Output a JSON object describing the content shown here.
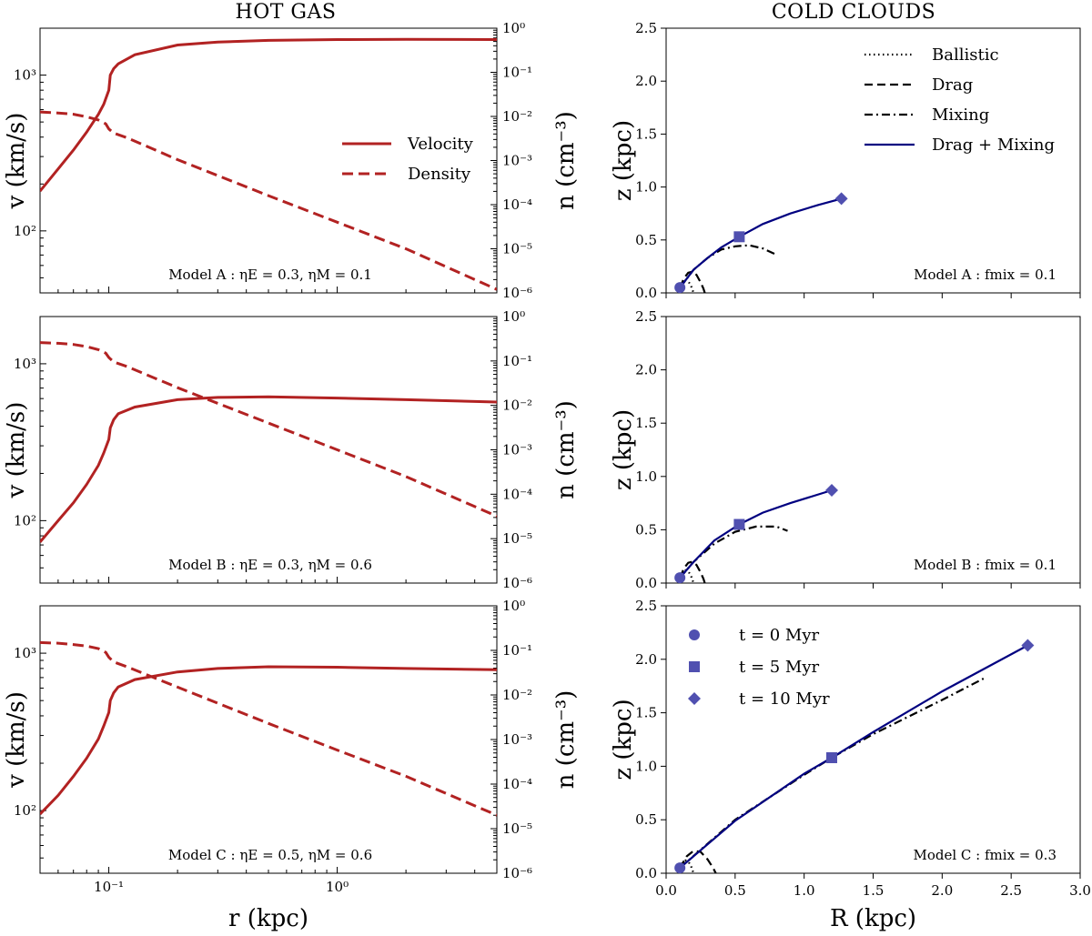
{
  "titles": {
    "left": "HOT GAS",
    "right": "COLD CLOUDS"
  },
  "colors": {
    "hot": "#b22222",
    "cold": "#000080",
    "marker": "#5050b0",
    "black": "#000000"
  },
  "chart_data": [
    {
      "type": "line",
      "panel": "hot-A",
      "xscale": "log",
      "xlim": [
        0.05,
        5.0
      ],
      "y_left": {
        "label": "v (km/s)",
        "scale": "log",
        "lim": [
          40,
          2000
        ],
        "ticks": [
          "10²",
          "10³"
        ]
      },
      "y_right": {
        "label": "n (cm⁻³)",
        "scale": "log",
        "lim": [
          1e-06,
          1
        ],
        "ticks": [
          "10⁻⁶",
          "10⁻⁵",
          "10⁻⁴",
          "10⁻³",
          "10⁻²",
          "10⁻¹",
          "10⁰"
        ]
      },
      "xlabel": "",
      "xticks": [],
      "annotation": "Model A : ηE = 0.3, ηM = 0.1",
      "legend": [
        "Velocity",
        "Density"
      ],
      "series": [
        {
          "name": "Velocity",
          "axis": "left",
          "x": [
            0.05,
            0.06,
            0.07,
            0.08,
            0.09,
            0.095,
            0.1,
            0.1015,
            0.105,
            0.11,
            0.13,
            0.2,
            0.3,
            0.5,
            1.0,
            2.0,
            5.0
          ],
          "y": [
            180,
            250,
            330,
            430,
            560,
            650,
            800,
            1000,
            1100,
            1180,
            1350,
            1560,
            1630,
            1670,
            1690,
            1695,
            1690
          ]
        },
        {
          "name": "Density",
          "axis": "right",
          "x": [
            0.05,
            0.06,
            0.07,
            0.08,
            0.09,
            0.097,
            0.1,
            0.105,
            0.12,
            0.2,
            0.5,
            1.0,
            2.0,
            5.0
          ],
          "y": [
            0.0126,
            0.012,
            0.0112,
            0.0098,
            0.0083,
            0.0068,
            0.0052,
            0.0042,
            0.0033,
            0.00105,
            0.00016,
            4e-05,
            1e-05,
            1.2e-06
          ]
        }
      ]
    },
    {
      "type": "line",
      "panel": "hot-B",
      "xscale": "log",
      "xlim": [
        0.05,
        5.0
      ],
      "y_left": {
        "label": "v (km/s)",
        "scale": "log",
        "lim": [
          40,
          2000
        ],
        "ticks": [
          "10²",
          "10³"
        ]
      },
      "y_right": {
        "label": "n (cm⁻³)",
        "scale": "log",
        "lim": [
          1e-06,
          1
        ],
        "ticks": [
          "10⁻⁶",
          "10⁻⁵",
          "10⁻⁴",
          "10⁻³",
          "10⁻²",
          "10⁻¹",
          "10⁰"
        ]
      },
      "xlabel": "",
      "xticks": [],
      "annotation": "Model B : ηE = 0.3, ηM = 0.6",
      "series": [
        {
          "name": "Velocity",
          "axis": "left",
          "x": [
            0.05,
            0.06,
            0.07,
            0.08,
            0.09,
            0.095,
            0.1,
            0.1015,
            0.105,
            0.11,
            0.13,
            0.2,
            0.3,
            0.5,
            1.0,
            2.0,
            5.0
          ],
          "y": [
            73,
            100,
            130,
            170,
            225,
            270,
            330,
            390,
            440,
            480,
            530,
            590,
            610,
            615,
            605,
            590,
            570
          ]
        },
        {
          "name": "Density",
          "axis": "right",
          "x": [
            0.05,
            0.06,
            0.07,
            0.08,
            0.09,
            0.097,
            0.1,
            0.105,
            0.12,
            0.2,
            0.5,
            1.0,
            2.0,
            5.0
          ],
          "y": [
            0.26,
            0.25,
            0.235,
            0.21,
            0.18,
            0.15,
            0.12,
            0.095,
            0.075,
            0.025,
            0.004,
            0.001,
            0.00025,
            3.2e-05
          ]
        }
      ]
    },
    {
      "type": "line",
      "panel": "hot-C",
      "xscale": "log",
      "xlim": [
        0.05,
        5.0
      ],
      "y_left": {
        "label": "v (km/s)",
        "scale": "log",
        "lim": [
          40,
          2000
        ],
        "ticks": [
          "10²",
          "10³"
        ]
      },
      "y_right": {
        "label": "n (cm⁻³)",
        "scale": "log",
        "lim": [
          1e-06,
          1
        ],
        "ticks": [
          "10⁻⁶",
          "10⁻⁵",
          "10⁻⁴",
          "10⁻³",
          "10⁻²",
          "10⁻¹",
          "10⁰"
        ]
      },
      "xlabel": "r (kpc)",
      "xticks": [
        "10⁻¹",
        "10⁰"
      ],
      "annotation": "Model C : ηE = 0.5, ηM = 0.6",
      "series": [
        {
          "name": "Velocity",
          "axis": "left",
          "x": [
            0.05,
            0.06,
            0.07,
            0.08,
            0.09,
            0.095,
            0.1,
            0.1015,
            0.105,
            0.11,
            0.13,
            0.2,
            0.3,
            0.5,
            1.0,
            2.0,
            5.0
          ],
          "y": [
            95,
            125,
            165,
            215,
            285,
            345,
            420,
            500,
            560,
            610,
            680,
            760,
            800,
            820,
            815,
            800,
            785
          ]
        },
        {
          "name": "Density",
          "axis": "right",
          "x": [
            0.05,
            0.06,
            0.07,
            0.08,
            0.09,
            0.097,
            0.1,
            0.105,
            0.12,
            0.2,
            0.5,
            1.0,
            2.0,
            5.0
          ],
          "y": [
            0.15,
            0.145,
            0.135,
            0.125,
            0.11,
            0.09,
            0.07,
            0.055,
            0.043,
            0.015,
            0.0023,
            0.00058,
            0.00015,
            2e-05
          ]
        }
      ]
    },
    {
      "type": "line",
      "panel": "cold-A",
      "xlim": [
        0,
        3.0
      ],
      "ylim": [
        0,
        2.5
      ],
      "ylabel": "z (kpc)",
      "xlabel": "",
      "xticks": [],
      "yticks": [
        "0.0",
        "0.5",
        "1.0",
        "1.5",
        "2.0",
        "2.5"
      ],
      "annotation": "Model A : fmix = 0.1",
      "legend": [
        "Ballistic",
        "Drag",
        "Mixing",
        "Drag + Mixing"
      ],
      "series": [
        {
          "name": "Ballistic",
          "style": "dotted",
          "x": [
            0.1,
            0.12,
            0.14,
            0.16,
            0.18,
            0.19,
            0.2
          ],
          "y": [
            0.05,
            0.1,
            0.12,
            0.11,
            0.07,
            0.03,
            0.0
          ]
        },
        {
          "name": "Drag",
          "style": "dashed",
          "x": [
            0.1,
            0.13,
            0.16,
            0.19,
            0.22,
            0.25,
            0.27,
            0.28
          ],
          "y": [
            0.05,
            0.14,
            0.19,
            0.2,
            0.17,
            0.1,
            0.04,
            0.0
          ]
        },
        {
          "name": "Mixing",
          "style": "dashdot",
          "x": [
            0.1,
            0.2,
            0.3,
            0.4,
            0.5,
            0.6,
            0.7,
            0.8
          ],
          "y": [
            0.05,
            0.22,
            0.33,
            0.41,
            0.44,
            0.45,
            0.42,
            0.36
          ]
        },
        {
          "name": "Drag + Mixing",
          "style": "solid",
          "x": [
            0.1,
            0.2,
            0.3,
            0.4,
            0.53,
            0.7,
            0.9,
            1.1,
            1.27
          ],
          "y": [
            0.05,
            0.22,
            0.33,
            0.43,
            0.53,
            0.65,
            0.75,
            0.83,
            0.89
          ]
        }
      ],
      "markers": [
        {
          "x": 0.1,
          "y": 0.05,
          "shape": "circle"
        },
        {
          "x": 0.53,
          "y": 0.53,
          "shape": "square"
        },
        {
          "x": 1.27,
          "y": 0.89,
          "shape": "diamond"
        }
      ]
    },
    {
      "type": "line",
      "panel": "cold-B",
      "xlim": [
        0,
        3.0
      ],
      "ylim": [
        0,
        2.5
      ],
      "ylabel": "z (kpc)",
      "xlabel": "",
      "xticks": [],
      "yticks": [
        "0.0",
        "0.5",
        "1.0",
        "1.5",
        "2.0",
        "2.5"
      ],
      "annotation": "Model B : fmix = 0.1",
      "series": [
        {
          "name": "Ballistic",
          "style": "dotted",
          "x": [
            0.1,
            0.12,
            0.14,
            0.16,
            0.18,
            0.19,
            0.2
          ],
          "y": [
            0.05,
            0.1,
            0.12,
            0.11,
            0.07,
            0.03,
            0.0
          ]
        },
        {
          "name": "Drag",
          "style": "dashed",
          "x": [
            0.1,
            0.13,
            0.16,
            0.19,
            0.22,
            0.25,
            0.27,
            0.28
          ],
          "y": [
            0.05,
            0.14,
            0.19,
            0.2,
            0.17,
            0.1,
            0.04,
            0.0
          ]
        },
        {
          "name": "Mixing",
          "style": "dashdot",
          "x": [
            0.1,
            0.2,
            0.35,
            0.5,
            0.65,
            0.8,
            0.88
          ],
          "y": [
            0.05,
            0.2,
            0.37,
            0.48,
            0.53,
            0.53,
            0.49
          ]
        },
        {
          "name": "Drag + Mixing",
          "style": "solid",
          "x": [
            0.1,
            0.2,
            0.35,
            0.53,
            0.7,
            0.9,
            1.2
          ],
          "y": [
            0.05,
            0.2,
            0.4,
            0.55,
            0.66,
            0.75,
            0.87
          ]
        }
      ],
      "markers": [
        {
          "x": 0.1,
          "y": 0.05,
          "shape": "circle"
        },
        {
          "x": 0.53,
          "y": 0.55,
          "shape": "square"
        },
        {
          "x": 1.2,
          "y": 0.87,
          "shape": "diamond"
        }
      ]
    },
    {
      "type": "line",
      "panel": "cold-C",
      "xlim": [
        0,
        3.0
      ],
      "ylim": [
        0,
        2.5
      ],
      "ylabel": "z (kpc)",
      "xlabel": "R (kpc)",
      "xticks": [
        "0.0",
        "0.5",
        "1.0",
        "1.5",
        "2.0",
        "2.5",
        "3.0"
      ],
      "yticks": [
        "0.0",
        "0.5",
        "1.0",
        "1.5",
        "2.0",
        "2.5"
      ],
      "annotation": "Model C : fmix = 0.3",
      "legend": [
        "t = 0 Myr",
        "t = 5 Myr",
        "t = 10 Myr"
      ],
      "series": [
        {
          "name": "Ballistic",
          "style": "dotted",
          "x": [
            0.1,
            0.12,
            0.14,
            0.16,
            0.18,
            0.19,
            0.2
          ],
          "y": [
            0.05,
            0.1,
            0.12,
            0.11,
            0.07,
            0.03,
            0.0
          ]
        },
        {
          "name": "Drag",
          "style": "dashed",
          "x": [
            0.1,
            0.15,
            0.2,
            0.25,
            0.3,
            0.34,
            0.36
          ],
          "y": [
            0.05,
            0.16,
            0.21,
            0.2,
            0.13,
            0.05,
            0.0
          ]
        },
        {
          "name": "Mixing",
          "style": "dashdot",
          "x": [
            0.1,
            0.5,
            1.0,
            1.2,
            1.5,
            2.0,
            2.3
          ],
          "y": [
            0.05,
            0.5,
            0.92,
            1.08,
            1.3,
            1.62,
            1.82
          ]
        },
        {
          "name": "Drag + Mixing",
          "style": "solid",
          "x": [
            0.1,
            0.5,
            1.0,
            1.2,
            1.5,
            2.0,
            2.62
          ],
          "y": [
            0.05,
            0.49,
            0.93,
            1.08,
            1.32,
            1.7,
            2.13
          ]
        }
      ],
      "markers": [
        {
          "x": 0.1,
          "y": 0.05,
          "shape": "circle"
        },
        {
          "x": 1.2,
          "y": 1.08,
          "shape": "square"
        },
        {
          "x": 2.62,
          "y": 2.13,
          "shape": "diamond"
        }
      ]
    }
  ]
}
